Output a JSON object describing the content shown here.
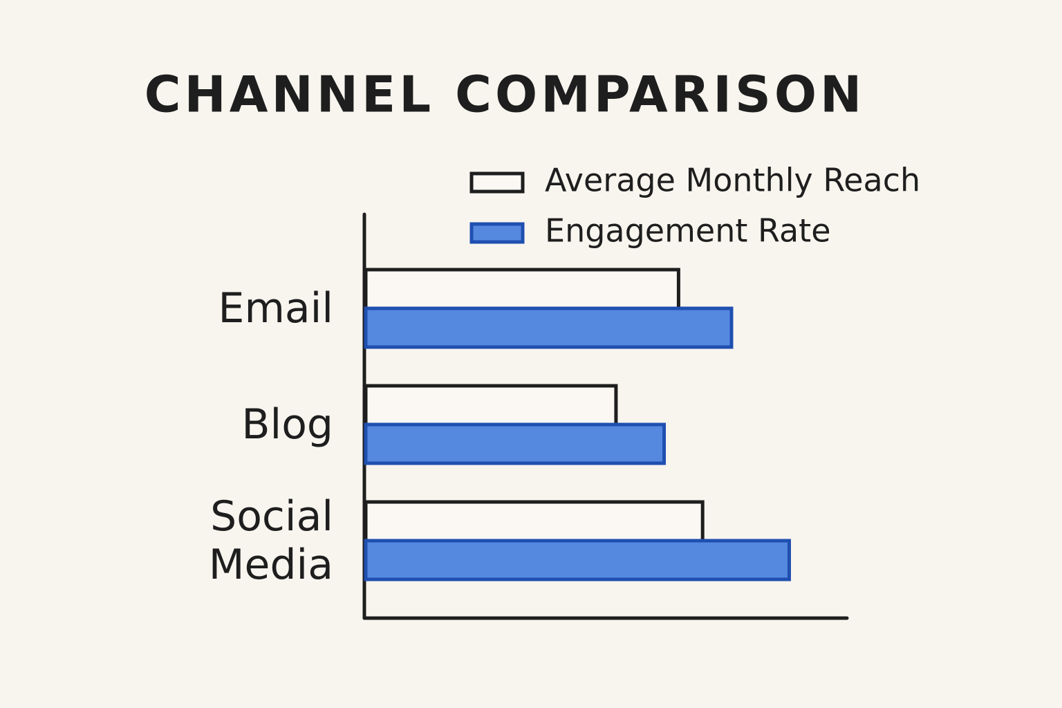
{
  "chart_data": {
    "type": "hbar",
    "title": "CHANNEL COMPARISON",
    "categories": [
      "Email",
      "Blog",
      "Social Media"
    ],
    "series": [
      {
        "name": "Average Monthly Reach",
        "color": "#fbf8f3",
        "values": [
          65,
          52,
          70
        ]
      },
      {
        "name": "Engagement Rate",
        "color": "#5589e0",
        "values": [
          76,
          62,
          88
        ]
      }
    ],
    "xlim": [
      0,
      100
    ]
  }
}
